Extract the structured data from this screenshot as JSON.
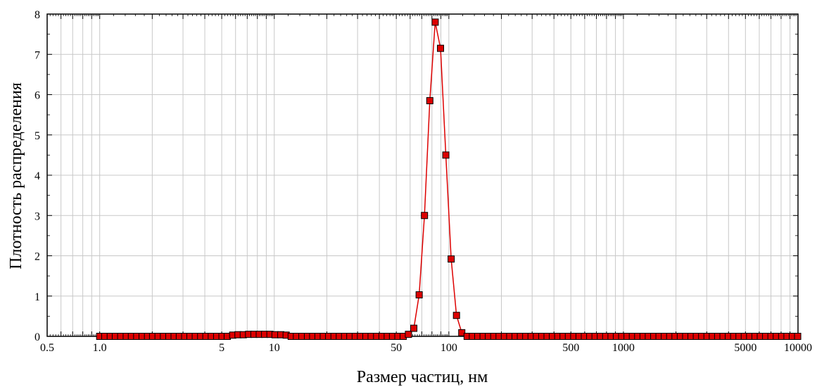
{
  "chart_data": {
    "type": "scatter",
    "title": "",
    "xlabel": "Размер частиц, нм",
    "ylabel": "Плотность распределения",
    "xscale": "log",
    "xlim": [
      0.5,
      10000
    ],
    "ylim": [
      0,
      8
    ],
    "grid": true,
    "legend": "none",
    "x_tick_labels": [
      "0.5",
      "1.0",
      "5",
      "10",
      "50",
      "100",
      "500",
      "1000",
      "5000",
      "10000"
    ],
    "y_tick_labels": [
      "0",
      "1",
      "2",
      "3",
      "4",
      "5",
      "6",
      "7",
      "8"
    ],
    "series": [
      {
        "name": "",
        "color": "#dd0000",
        "marker": "square",
        "line": true,
        "points": [
          {
            "x": 1.0,
            "y": 0
          },
          {
            "x": 1.07,
            "y": 0
          },
          {
            "x": 1.15,
            "y": 0
          },
          {
            "x": 1.23,
            "y": 0
          },
          {
            "x": 1.32,
            "y": 0
          },
          {
            "x": 1.42,
            "y": 0
          },
          {
            "x": 1.52,
            "y": 0
          },
          {
            "x": 1.63,
            "y": 0
          },
          {
            "x": 1.75,
            "y": 0
          },
          {
            "x": 1.88,
            "y": 0
          },
          {
            "x": 2.01,
            "y": 0
          },
          {
            "x": 2.16,
            "y": 0
          },
          {
            "x": 2.32,
            "y": 0
          },
          {
            "x": 2.49,
            "y": 0
          },
          {
            "x": 2.67,
            "y": 0
          },
          {
            "x": 2.86,
            "y": 0
          },
          {
            "x": 3.07,
            "y": 0
          },
          {
            "x": 3.29,
            "y": 0
          },
          {
            "x": 3.53,
            "y": 0
          },
          {
            "x": 3.79,
            "y": 0
          },
          {
            "x": 4.06,
            "y": 0
          },
          {
            "x": 4.36,
            "y": 0
          },
          {
            "x": 4.68,
            "y": 0
          },
          {
            "x": 5.02,
            "y": 0
          },
          {
            "x": 5.38,
            "y": 0
          },
          {
            "x": 5.78,
            "y": 0.03
          },
          {
            "x": 6.2,
            "y": 0.04
          },
          {
            "x": 6.65,
            "y": 0.04
          },
          {
            "x": 7.13,
            "y": 0.05
          },
          {
            "x": 7.65,
            "y": 0.05
          },
          {
            "x": 8.21,
            "y": 0.05
          },
          {
            "x": 8.81,
            "y": 0.05
          },
          {
            "x": 9.45,
            "y": 0.05
          },
          {
            "x": 10.1,
            "y": 0.04
          },
          {
            "x": 10.9,
            "y": 0.04
          },
          {
            "x": 11.7,
            "y": 0.03
          },
          {
            "x": 12.5,
            "y": 0
          },
          {
            "x": 13.4,
            "y": 0
          },
          {
            "x": 14.4,
            "y": 0
          },
          {
            "x": 15.5,
            "y": 0
          },
          {
            "x": 16.6,
            "y": 0
          },
          {
            "x": 17.8,
            "y": 0
          },
          {
            "x": 19.1,
            "y": 0
          },
          {
            "x": 20.5,
            "y": 0
          },
          {
            "x": 22.0,
            "y": 0
          },
          {
            "x": 23.6,
            "y": 0
          },
          {
            "x": 25.3,
            "y": 0
          },
          {
            "x": 27.1,
            "y": 0
          },
          {
            "x": 29.1,
            "y": 0
          },
          {
            "x": 31.2,
            "y": 0
          },
          {
            "x": 33.5,
            "y": 0
          },
          {
            "x": 35.9,
            "y": 0
          },
          {
            "x": 38.6,
            "y": 0
          },
          {
            "x": 41.4,
            "y": 0
          },
          {
            "x": 44.4,
            "y": 0
          },
          {
            "x": 47.6,
            "y": 0
          },
          {
            "x": 51.1,
            "y": 0
          },
          {
            "x": 54.8,
            "y": 0
          },
          {
            "x": 58.7,
            "y": 0.05
          },
          {
            "x": 63.0,
            "y": 0.2
          },
          {
            "x": 67.6,
            "y": 1.03
          },
          {
            "x": 72.5,
            "y": 3.0
          },
          {
            "x": 77.8,
            "y": 5.85
          },
          {
            "x": 83.5,
            "y": 7.8
          },
          {
            "x": 89.6,
            "y": 7.15
          },
          {
            "x": 96.1,
            "y": 4.5
          },
          {
            "x": 103.1,
            "y": 1.92
          },
          {
            "x": 110.6,
            "y": 0.52
          },
          {
            "x": 118.6,
            "y": 0.09
          },
          {
            "x": 127.3,
            "y": 0
          },
          {
            "x": 136.5,
            "y": 0
          },
          {
            "x": 146.5,
            "y": 0
          },
          {
            "x": 157.2,
            "y": 0
          },
          {
            "x": 168.6,
            "y": 0
          },
          {
            "x": 180.9,
            "y": 0
          },
          {
            "x": 194.1,
            "y": 0
          },
          {
            "x": 208.2,
            "y": 0
          },
          {
            "x": 223.4,
            "y": 0
          },
          {
            "x": 239.7,
            "y": 0
          },
          {
            "x": 257.1,
            "y": 0
          },
          {
            "x": 275.9,
            "y": 0
          },
          {
            "x": 296.0,
            "y": 0
          },
          {
            "x": 317.5,
            "y": 0
          },
          {
            "x": 340.7,
            "y": 0
          },
          {
            "x": 365.5,
            "y": 0
          },
          {
            "x": 392.1,
            "y": 0
          },
          {
            "x": 420.7,
            "y": 0
          },
          {
            "x": 451.3,
            "y": 0
          },
          {
            "x": 484.2,
            "y": 0
          },
          {
            "x": 519.5,
            "y": 0
          },
          {
            "x": 557.3,
            "y": 0
          },
          {
            "x": 597.9,
            "y": 0
          },
          {
            "x": 641.5,
            "y": 0
          },
          {
            "x": 688.2,
            "y": 0
          },
          {
            "x": 738.4,
            "y": 0
          },
          {
            "x": 792.2,
            "y": 0
          },
          {
            "x": 849.9,
            "y": 0
          },
          {
            "x": 911.8,
            "y": 0
          },
          {
            "x": 978.2,
            "y": 0
          },
          {
            "x": 1049.5,
            "y": 0
          },
          {
            "x": 1126,
            "y": 0
          },
          {
            "x": 1208,
            "y": 0
          },
          {
            "x": 1296,
            "y": 0
          },
          {
            "x": 1390,
            "y": 0
          },
          {
            "x": 1492,
            "y": 0
          },
          {
            "x": 1600,
            "y": 0
          },
          {
            "x": 1717,
            "y": 0
          },
          {
            "x": 1842,
            "y": 0
          },
          {
            "x": 1976,
            "y": 0
          },
          {
            "x": 2120,
            "y": 0
          },
          {
            "x": 2275,
            "y": 0
          },
          {
            "x": 2440,
            "y": 0
          },
          {
            "x": 2618,
            "y": 0
          },
          {
            "x": 2809,
            "y": 0
          },
          {
            "x": 3013,
            "y": 0
          },
          {
            "x": 3233,
            "y": 0
          },
          {
            "x": 3468,
            "y": 0
          },
          {
            "x": 3721,
            "y": 0
          },
          {
            "x": 3992,
            "y": 0
          },
          {
            "x": 4283,
            "y": 0
          },
          {
            "x": 4595,
            "y": 0
          },
          {
            "x": 4929,
            "y": 0
          },
          {
            "x": 5288,
            "y": 0
          },
          {
            "x": 5674,
            "y": 0
          },
          {
            "x": 6087,
            "y": 0
          },
          {
            "x": 6531,
            "y": 0
          },
          {
            "x": 7006,
            "y": 0
          },
          {
            "x": 7517,
            "y": 0
          },
          {
            "x": 8064,
            "y": 0
          },
          {
            "x": 8652,
            "y": 0
          },
          {
            "x": 9282,
            "y": 0
          },
          {
            "x": 9958,
            "y": 0
          }
        ]
      }
    ]
  }
}
